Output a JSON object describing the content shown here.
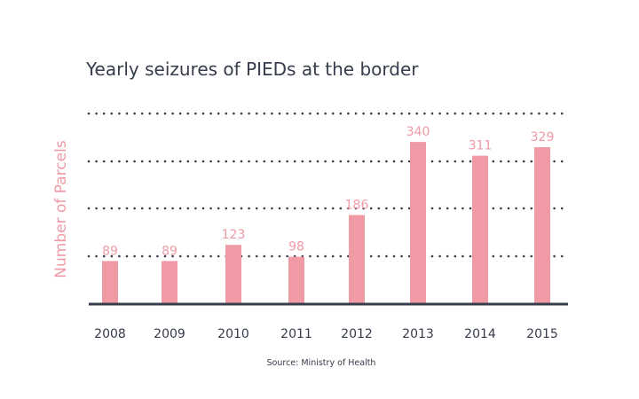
{
  "chart_data": {
    "type": "bar",
    "title": "Yearly seizures of PIEDs at the border",
    "xlabel": "",
    "ylabel": "Number of Parcels",
    "categories": [
      "2008",
      "2009",
      "2010",
      "2011",
      "2012",
      "2013",
      "2014",
      "2015"
    ],
    "values": [
      89,
      89,
      123,
      98,
      186,
      340,
      311,
      329
    ],
    "data_labels": [
      "89",
      "89",
      "123",
      "98",
      "186",
      "340",
      "311",
      "329"
    ],
    "ylim": [
      0,
      400
    ],
    "gridlines": [
      100,
      200,
      300,
      400
    ],
    "grid": true,
    "grid_style": "dotted",
    "y_tick_labels_shown": false,
    "legend": "none",
    "source": "Source: Ministry of Health",
    "colors": {
      "bar": "#ef9aa5",
      "data_label": "#ef9aa5",
      "ylabel": "#ef9aa5",
      "text": "#353c4b",
      "grid": "#353c4b",
      "axis": "#353c4b"
    }
  }
}
